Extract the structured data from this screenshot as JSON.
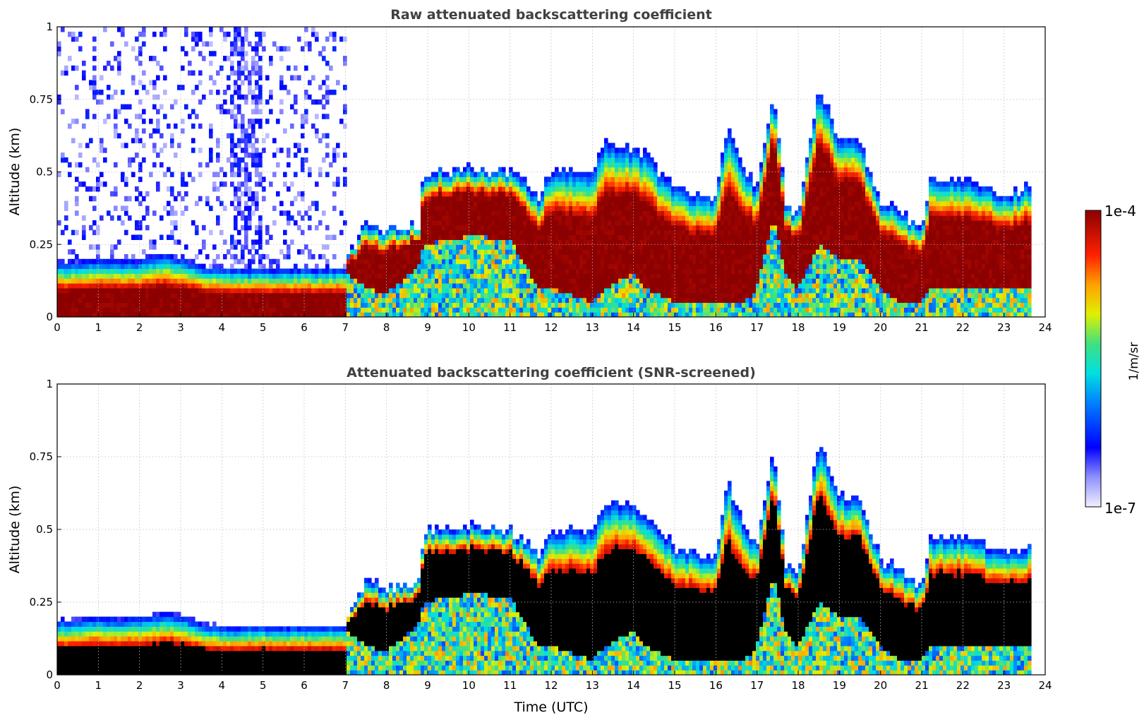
{
  "chart_data": [
    {
      "type": "heatmap",
      "title": "Raw attenuated backscattering coefficient",
      "xlabel": "",
      "ylabel": "Altitude (km)",
      "xlim": [
        0,
        24
      ],
      "ylim": [
        0,
        1
      ],
      "x_ticks": [
        "0",
        "1",
        "2",
        "3",
        "4",
        "5",
        "6",
        "7",
        "8",
        "9",
        "10",
        "11",
        "12",
        "13",
        "14",
        "15",
        "16",
        "17",
        "18",
        "19",
        "20",
        "21",
        "22",
        "23",
        "24"
      ],
      "y_ticks": [
        "0",
        "0.25",
        "0.5",
        "0.75",
        "1"
      ],
      "grid": true,
      "raw_noise_until_hour": 7,
      "surface_layer": {
        "x": [
          0,
          1,
          2,
          2.6,
          3,
          3.5,
          4,
          5,
          6,
          7
        ],
        "top": [
          0.19,
          0.2,
          0.2,
          0.22,
          0.21,
          0.18,
          0.17,
          0.17,
          0.17,
          0.17
        ]
      },
      "cloud_layer": {
        "x": [
          7,
          7.5,
          8,
          8.8,
          8.9,
          10,
          11,
          11.7,
          12,
          13,
          13.3,
          14,
          14.3,
          15,
          16,
          16.3,
          16.7,
          17,
          17.4,
          17.7,
          18,
          18.5,
          19,
          19.5,
          20,
          20.5,
          21,
          21.2,
          22,
          23,
          23.65
        ],
        "top": [
          0.18,
          0.33,
          0.3,
          0.32,
          0.5,
          0.51,
          0.5,
          0.42,
          0.5,
          0.5,
          0.6,
          0.58,
          0.56,
          0.44,
          0.41,
          0.67,
          0.5,
          0.45,
          0.78,
          0.38,
          0.35,
          0.8,
          0.62,
          0.6,
          0.4,
          0.36,
          0.3,
          0.47,
          0.48,
          0.42,
          0.45
        ],
        "base": [
          0.15,
          0.1,
          0.08,
          0.18,
          0.25,
          0.28,
          0.27,
          0.1,
          0.1,
          0.05,
          0.1,
          0.15,
          0.1,
          0.05,
          0.05,
          0.05,
          0.05,
          0.1,
          0.35,
          0.15,
          0.1,
          0.25,
          0.2,
          0.2,
          0.1,
          0.05,
          0.05,
          0.1,
          0.1,
          0.1,
          0.1
        ]
      }
    },
    {
      "type": "heatmap",
      "title": "Attenuated backscattering coefficient (SNR-screened)",
      "xlabel": "Time (UTC)",
      "ylabel": "Altitude (km)",
      "xlim": [
        0,
        24
      ],
      "ylim": [
        0,
        1
      ],
      "x_ticks": [
        "0",
        "1",
        "2",
        "3",
        "4",
        "5",
        "6",
        "7",
        "8",
        "9",
        "10",
        "11",
        "12",
        "13",
        "14",
        "15",
        "16",
        "17",
        "18",
        "19",
        "20",
        "21",
        "22",
        "23",
        "24"
      ],
      "y_ticks": [
        "0",
        "0.25",
        "0.5",
        "0.75",
        "1"
      ],
      "grid": true,
      "saturated_color": "#000000"
    }
  ],
  "colorbar": {
    "min_label": "1e-7",
    "max_label": "1e-4",
    "label": "1/m/sr",
    "colormap": "jet"
  },
  "colors": {
    "title": "#404040",
    "grid": "#bbbbbb",
    "saturated": "#8b0000"
  }
}
